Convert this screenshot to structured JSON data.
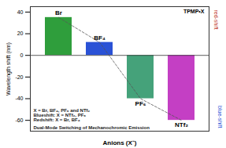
{
  "chart_data": {
    "type": "bar",
    "categories": [
      "Br",
      "BF₄",
      "PF₆",
      "NTf₂"
    ],
    "values": [
      35,
      12,
      -40,
      -60
    ],
    "colors": [
      "#2f9e3c",
      "#2a52d6",
      "#45a27a",
      "#c43fc4"
    ],
    "x_label": "Anions (X⁻)",
    "y_label": "Wavelength shift (nm)",
    "ylim": [
      -70,
      45
    ],
    "yticks": [
      -60,
      -40,
      -20,
      0,
      20,
      40
    ],
    "grid": false,
    "tick_labels": "y",
    "annotations": [
      "X = Br, BF₄, PF₆ and NTf₂",
      "Blueshift: X = NTf₂, PF₆",
      "Redshift: X = Br, BF₄",
      "Dual-Mode Switching of Mechanochromic Emission"
    ],
    "compound_label": "TPMP•X",
    "shift_labels": [
      "red-shift",
      "blue-shift"
    ]
  }
}
